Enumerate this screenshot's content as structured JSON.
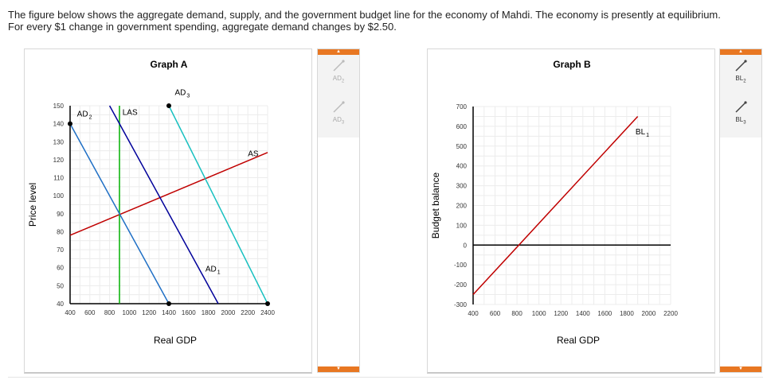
{
  "intro_text": "The figure below shows the aggregate demand, supply, and the government budget line for the economy of Mahdi. The economy is presently at equilibrium. For every $1 change in government spending, aggregate demand changes by $2.50.",
  "colors": {
    "accent": "#e87722",
    "red": "#c00000",
    "green": "#00b000",
    "navy": "#00009a",
    "blue": "#1f6fc5",
    "cyan": "#18c0c0",
    "grid": "#ececec"
  },
  "graph_a": {
    "title": "Graph A",
    "xlabel": "Real GDP",
    "ylabel": "Price level",
    "tools": [
      {
        "label": "AD",
        "sub": "2",
        "icon": "line-tool-icon"
      },
      {
        "label": "AD",
        "sub": "3",
        "icon": "line-tool-icon"
      }
    ]
  },
  "graph_b": {
    "title": "Graph B",
    "xlabel": "Real GDP",
    "ylabel": "Budget balance",
    "tools": [
      {
        "label": "BL",
        "sub": "2",
        "icon": "line-tool-icon"
      },
      {
        "label": "BL",
        "sub": "3",
        "icon": "line-tool-icon"
      }
    ]
  },
  "chart_data": [
    {
      "type": "line",
      "title": "Graph A",
      "xlabel": "Real GDP",
      "ylabel": "Price level",
      "xlim": [
        400,
        2400
      ],
      "ylim": [
        40,
        150
      ],
      "xticks": [
        400,
        600,
        800,
        1000,
        1200,
        1400,
        1600,
        1800,
        2000,
        2200,
        2400
      ],
      "yticks": [
        40,
        50,
        60,
        70,
        80,
        90,
        100,
        110,
        120,
        130,
        140,
        150
      ],
      "grid": true,
      "series": [
        {
          "name": "AS",
          "color": "#c00000",
          "x": [
            400,
            2400
          ],
          "y": [
            78,
            124
          ]
        },
        {
          "name": "LAS",
          "color": "#00b000",
          "x": [
            900,
            900
          ],
          "y": [
            40,
            150
          ]
        },
        {
          "name": "AD1",
          "color": "#00009a",
          "x": [
            800,
            1900
          ],
          "y": [
            150,
            40
          ]
        },
        {
          "name": "AD2",
          "color": "#1f6fc5",
          "x": [
            400,
            1400
          ],
          "y": [
            140,
            40
          ],
          "markers": [
            [
              400,
              140
            ],
            [
              1400,
              40
            ]
          ]
        },
        {
          "name": "AD3",
          "color": "#18c0c0",
          "x": [
            1400,
            2400
          ],
          "y": [
            150,
            40
          ],
          "markers": [
            [
              1400,
              150
            ],
            [
              2400,
              40
            ]
          ]
        }
      ],
      "labels": [
        {
          "text": "AS",
          "x": 2200,
          "y": 122
        },
        {
          "text": "LAS",
          "x": 930,
          "y": 145
        },
        {
          "text": "AD",
          "sub": "1",
          "x": 1770,
          "y": 58
        },
        {
          "text": "AD",
          "sub": "2",
          "x": 470,
          "y": 144
        },
        {
          "text": "AD",
          "sub": "3",
          "x": 1460,
          "y": 156
        }
      ]
    },
    {
      "type": "line",
      "title": "Graph B",
      "xlabel": "Real GDP",
      "ylabel": "Budget balance",
      "xlim": [
        400,
        2200
      ],
      "ylim": [
        -300,
        700
      ],
      "xticks": [
        400,
        600,
        800,
        1000,
        1200,
        1400,
        1600,
        1800,
        2000,
        2200
      ],
      "yticks": [
        -300,
        -200,
        -100,
        0,
        100,
        200,
        300,
        400,
        500,
        600,
        700
      ],
      "grid": true,
      "series": [
        {
          "name": "BL1",
          "color": "#c00000",
          "x": [
            400,
            1900
          ],
          "y": [
            -250,
            650
          ]
        }
      ],
      "labels": [
        {
          "text": "BL",
          "sub": "1",
          "x": 1880,
          "y": 560
        }
      ]
    }
  ]
}
